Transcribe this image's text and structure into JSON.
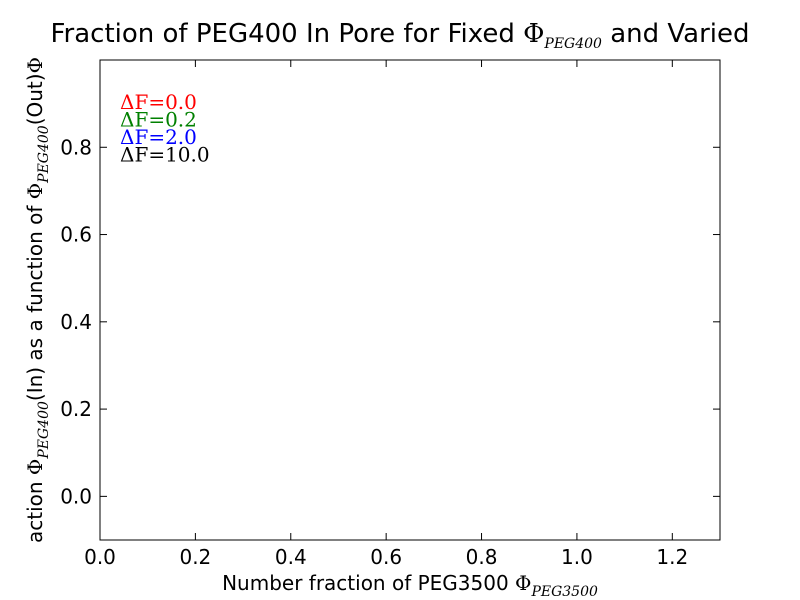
{
  "chart_data": {
    "type": "line",
    "title": {
      "prefix": "Fraction of PEG400 In Pore for Fixed  ",
      "symbol": "Φ",
      "subscript": "PEG400",
      "suffix": " and Varied"
    },
    "xlabel": {
      "prefix": "Number fraction of PEG3500 ",
      "symbol": "Φ",
      "subscript": "PEG3500"
    },
    "ylabel": {
      "part1": "action ",
      "symbol1": "Φ",
      "sub1": "PEG400",
      "part2": "(In) as a function of ",
      "symbol2": "Φ",
      "sub2": "PEG400",
      "part3": "(Out)",
      "symbol3": "Φ"
    },
    "xlim": [
      0.0,
      1.3
    ],
    "ylim": [
      -0.1,
      1.0
    ],
    "xticks": [
      0.0,
      0.2,
      0.4,
      0.6,
      0.8,
      1.0,
      1.2
    ],
    "yticks": [
      0.0,
      0.2,
      0.4,
      0.6,
      0.8
    ],
    "xtick_labels": [
      "0.0",
      "0.2",
      "0.4",
      "0.6",
      "0.8",
      "1.0",
      "1.2"
    ],
    "ytick_labels": [
      "0.0",
      "0.2",
      "0.4",
      "0.6",
      "0.8"
    ],
    "grid": false,
    "legend_placement": "top-left",
    "series": [
      {
        "label": "ΔF=0.0",
        "color": "#ff0000",
        "x": [],
        "y": []
      },
      {
        "label": "ΔF=0.2",
        "color": "#008000",
        "x": [],
        "y": []
      },
      {
        "label": "ΔF=2.0",
        "color": "#0000ff",
        "x": [],
        "y": []
      },
      {
        "label": "ΔF=10.0",
        "color": "#000000",
        "x": [],
        "y": []
      }
    ]
  }
}
